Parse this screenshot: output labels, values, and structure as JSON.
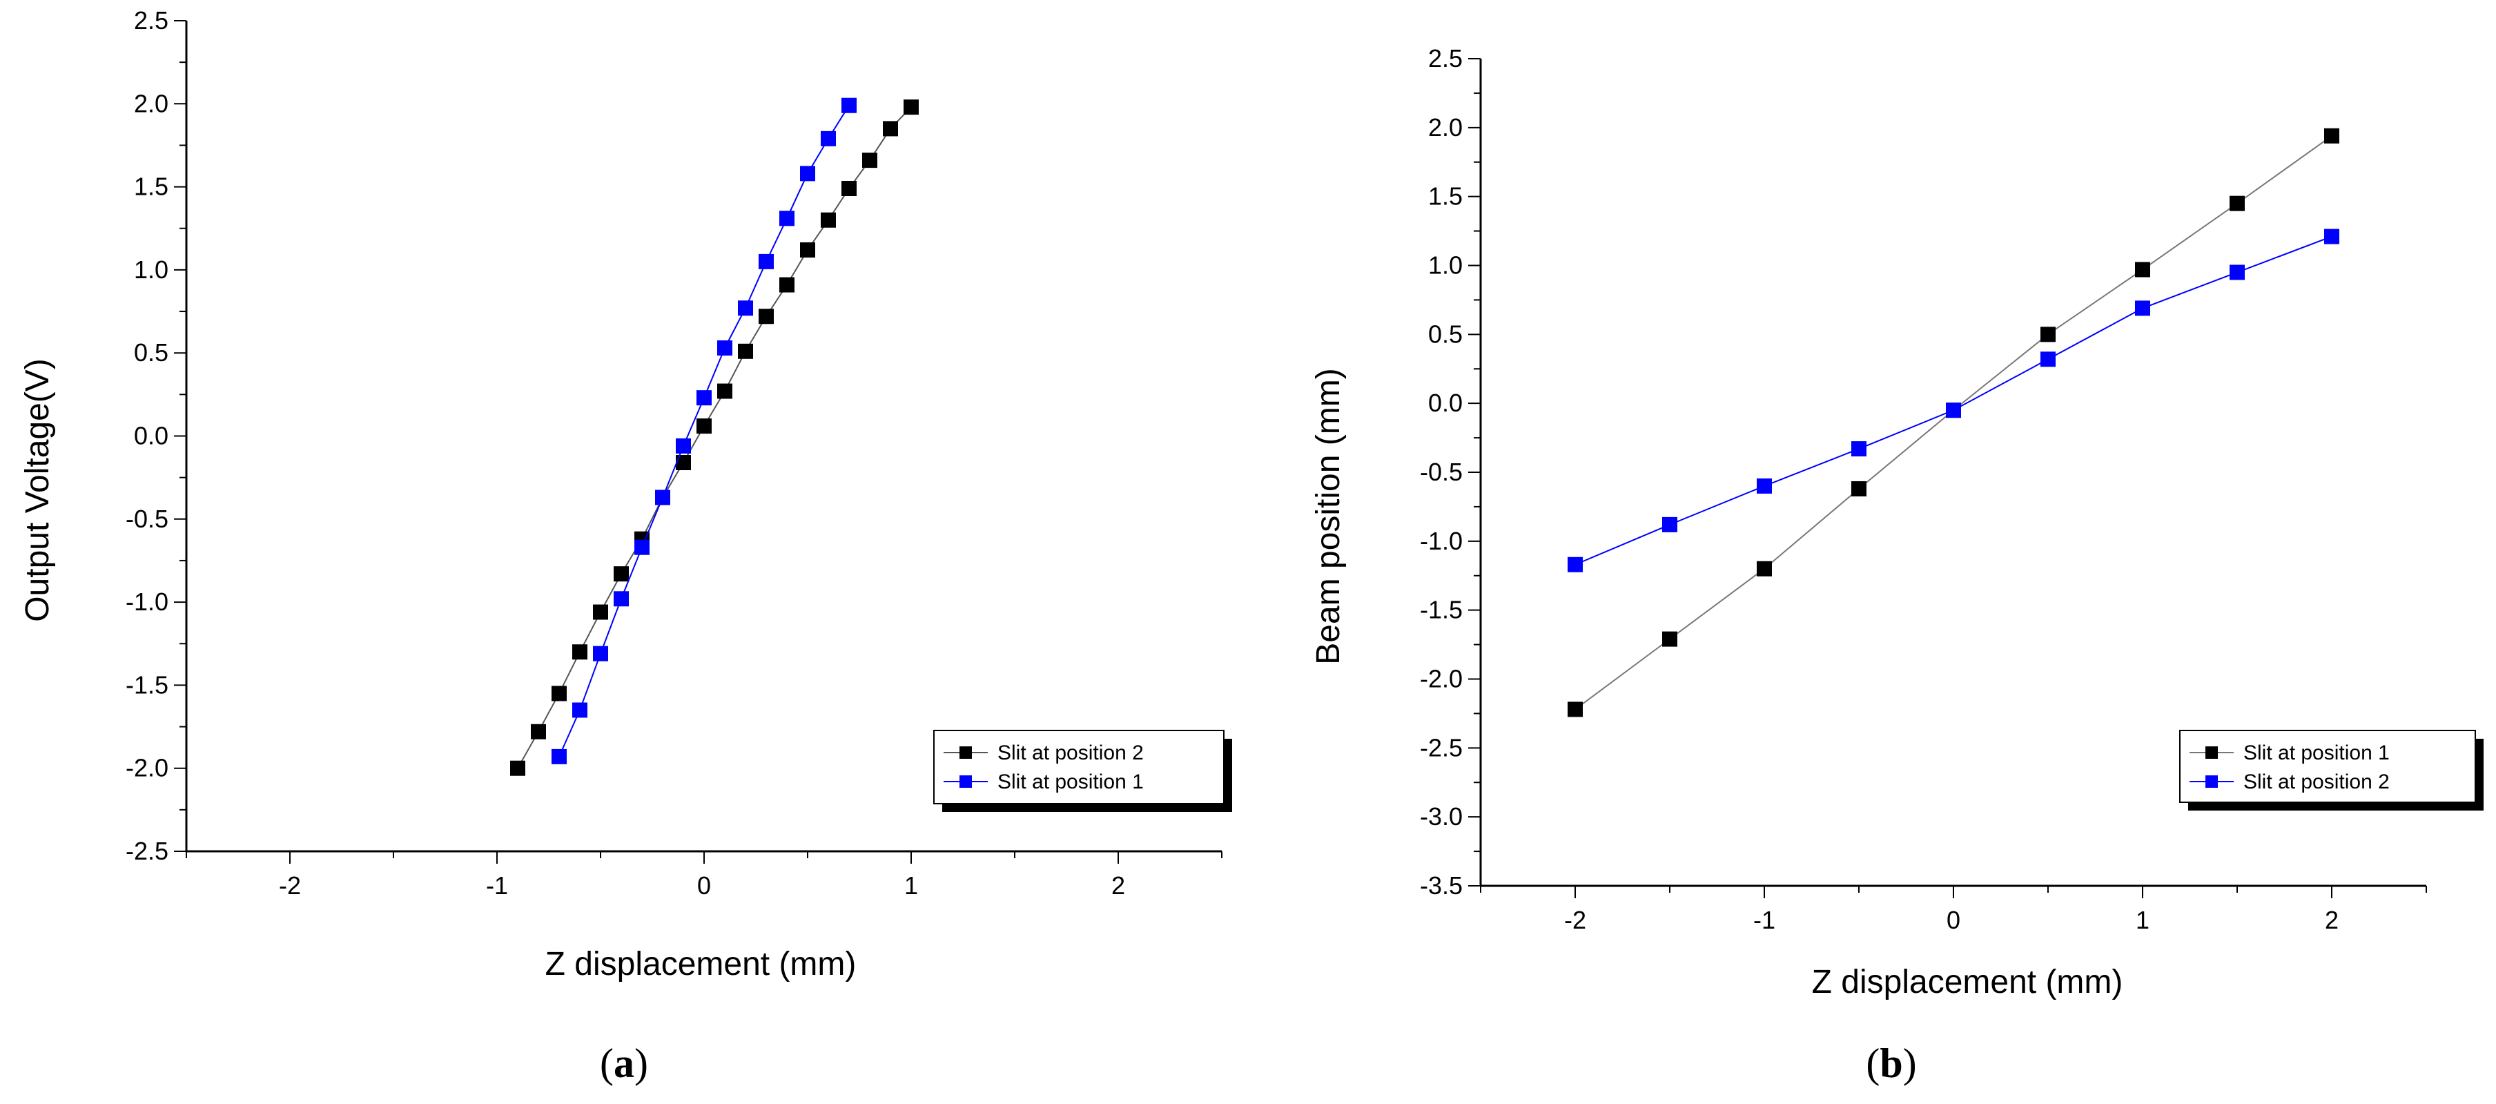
{
  "chart_data": [
    {
      "type": "line",
      "panel": "a",
      "xlabel": "Z displacement (mm)",
      "ylabel": "Output Voltage(V)",
      "xlim": [
        -2.5,
        2.5
      ],
      "ylim": [
        -2.5,
        2.5
      ],
      "xticks": [
        -2,
        -1,
        0,
        1,
        2
      ],
      "yticks": [
        -2.5,
        -2.0,
        -1.5,
        -1.0,
        -0.5,
        0.0,
        0.5,
        1.0,
        1.5,
        2.0,
        2.5
      ],
      "xtick_labels": [
        "-2",
        "-1",
        "0",
        "1",
        "2"
      ],
      "ytick_labels": [
        "-2.5",
        "-2.0",
        "-1.5",
        "-1.0",
        "-0.5",
        "0.0",
        "0.5",
        "1.0",
        "1.5",
        "2.0",
        "2.5"
      ],
      "legend_position": "bottom-right",
      "series": [
        {
          "name": "Slit at position 2",
          "color": "#000000",
          "line_color": "#555555",
          "x": [
            -0.9,
            -0.8,
            -0.7,
            -0.6,
            -0.5,
            -0.4,
            -0.3,
            -0.2,
            -0.1,
            0.0,
            0.1,
            0.2,
            0.3,
            0.4,
            0.5,
            0.6,
            0.7,
            0.8,
            0.9,
            1.0
          ],
          "y": [
            -2.0,
            -1.78,
            -1.55,
            -1.3,
            -1.06,
            -0.83,
            -0.62,
            -0.37,
            -0.16,
            0.06,
            0.27,
            0.51,
            0.72,
            0.91,
            1.12,
            1.3,
            1.49,
            1.66,
            1.85,
            1.98
          ]
        },
        {
          "name": "Slit at position 1",
          "color": "#0000ff",
          "line_color": "#0000ff",
          "x": [
            -0.7,
            -0.6,
            -0.5,
            -0.4,
            -0.3,
            -0.2,
            -0.1,
            0.0,
            0.1,
            0.2,
            0.3,
            0.4,
            0.5,
            0.6,
            0.7
          ],
          "y": [
            -1.93,
            -1.65,
            -1.31,
            -0.98,
            -0.67,
            -0.37,
            -0.06,
            0.23,
            0.53,
            0.77,
            1.05,
            1.31,
            1.58,
            1.79,
            1.99
          ]
        }
      ]
    },
    {
      "type": "line",
      "panel": "b",
      "xlabel": "Z displacement (mm)",
      "ylabel": "Beam position (mm)",
      "xlim": [
        -2.5,
        2.5
      ],
      "ylim": [
        -3.5,
        2.5
      ],
      "xticks": [
        -2,
        -1,
        0,
        1,
        2
      ],
      "yticks": [
        -3.5,
        -3.0,
        -2.5,
        -2.0,
        -1.5,
        -1.0,
        -0.5,
        0.0,
        0.5,
        1.0,
        1.5,
        2.0,
        2.5
      ],
      "xtick_labels": [
        "-2",
        "-1",
        "0",
        "1",
        "2"
      ],
      "ytick_labels": [
        "-3.5",
        "-3.0",
        "-2.5",
        "-2.0",
        "-1.5",
        "-1.0",
        "-0.5",
        "0.0",
        "0.5",
        "1.0",
        "1.5",
        "2.0",
        "2.5"
      ],
      "legend_position": "bottom-right",
      "series": [
        {
          "name": "Slit at position 1",
          "color": "#000000",
          "line_color": "#777777",
          "x": [
            -2.0,
            -1.5,
            -1.0,
            -0.5,
            0.0,
            0.5,
            1.0,
            1.5,
            2.0
          ],
          "y": [
            -2.22,
            -1.71,
            -1.2,
            -0.62,
            -0.05,
            0.5,
            0.97,
            1.45,
            1.94
          ]
        },
        {
          "name": "Slit at position 2",
          "color": "#0000ff",
          "line_color": "#0000ff",
          "x": [
            -2.0,
            -1.5,
            -1.0,
            -0.5,
            0.0,
            0.5,
            1.0,
            1.5,
            2.0
          ],
          "y": [
            -1.17,
            -0.88,
            -0.6,
            -0.33,
            -0.05,
            0.32,
            0.69,
            0.95,
            1.21
          ]
        }
      ]
    }
  ],
  "captions": [
    {
      "open": "(",
      "letter": "a",
      "close": ")"
    },
    {
      "open": "(",
      "letter": "b",
      "close": ")"
    }
  ]
}
